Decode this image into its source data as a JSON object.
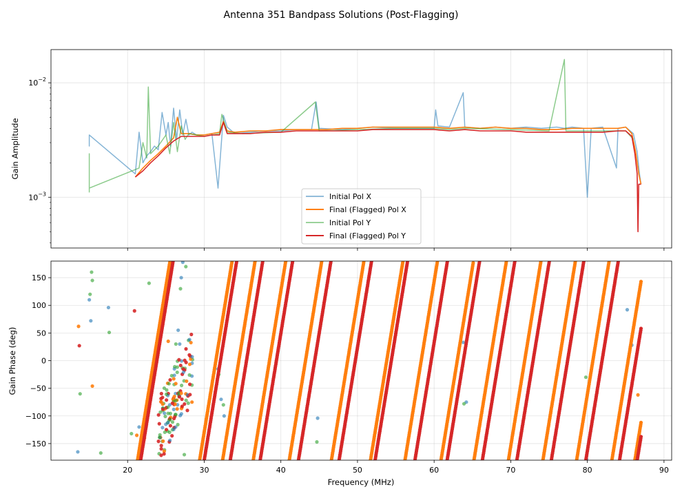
{
  "chart_data": {
    "title": "Antenna 351 Bandpass Solutions (Post-Flagging)",
    "colors": {
      "initial_x": "#1f77b4",
      "final_x": "#ff7f0e",
      "initial_y": "#2ca02c",
      "final_y": "#d62728"
    },
    "x_axis": {
      "label": "Frequency (MHz)",
      "range": [
        10,
        91
      ],
      "ticks": [
        20,
        30,
        40,
        50,
        60,
        70,
        80,
        90
      ],
      "tick_labels": [
        "20",
        "30",
        "40",
        "50",
        "60",
        "70",
        "80",
        "90"
      ]
    },
    "panels": [
      {
        "type": "line",
        "yscale": "log",
        "ylabel": "Gain Amplitude",
        "ylim": [
          0.00036,
          0.0195
        ],
        "y_ticks": [
          0.001,
          0.01
        ],
        "y_tick_labels": [
          {
            "base": "10",
            "exp": "−3"
          },
          {
            "base": "10",
            "exp": "−2"
          }
        ],
        "legend": {
          "placement": "lower-center",
          "entries": [
            "Initial Pol X",
            "Final (Flagged) Pol X",
            "Initial Pol Y",
            "Final (Flagged) Pol Y"
          ]
        },
        "series": [
          {
            "name": "Initial Pol X",
            "color_key": "initial_x",
            "alpha": 0.55,
            "width": 1.5,
            "x": [
              15,
              15,
              15,
              21,
              21.5,
              22,
              22.5,
              23,
              23.5,
              24,
              24.5,
              25,
              25.3,
              25.6,
              26,
              26.4,
              26.8,
              27.2,
              27.6,
              28,
              28.4,
              29,
              30,
              31,
              31.8,
              32.5,
              33,
              34,
              36,
              38,
              40,
              42,
              44,
              44.6,
              45,
              48,
              50,
              52,
              55,
              58,
              60,
              60.2,
              60.5,
              62,
              63.8,
              64,
              66,
              68,
              70,
              72,
              74,
              76,
              77,
              78,
              79.5,
              80,
              80.5,
              82,
              83.8,
              84,
              85,
              86,
              86.5,
              86.8,
              87
            ],
            "y": [
              0.0035,
              0.0028,
              0.0035,
              0.0016,
              0.0037,
              0.002,
              0.0023,
              0.0025,
              0.0028,
              0.0026,
              0.0055,
              0.0035,
              0.0045,
              0.0028,
              0.006,
              0.0032,
              0.0058,
              0.0035,
              0.0048,
              0.0035,
              0.0037,
              0.0035,
              0.0035,
              0.0036,
              0.0012,
              0.0052,
              0.0041,
              0.0036,
              0.0037,
              0.0038,
              0.0038,
              0.0039,
              0.0039,
              0.0068,
              0.004,
              0.0039,
              0.004,
              0.0041,
              0.004,
              0.004,
              0.004,
              0.0058,
              0.0042,
              0.0041,
              0.0082,
              0.0041,
              0.004,
              0.0041,
              0.004,
              0.0041,
              0.004,
              0.0041,
              0.004,
              0.0041,
              0.004,
              0.001,
              0.004,
              0.0041,
              0.0018,
              0.004,
              0.0041,
              0.0036,
              0.0025,
              0.0016,
              0.0013
            ]
          },
          {
            "name": "Final (Flagged) Pol X",
            "color_key": "final_x",
            "alpha": 1,
            "width": 1.6,
            "x": [
              21,
              22,
              23,
              24,
              25,
              26,
              26.5,
              27,
              28,
              29,
              30,
              31,
              32,
              32.5,
              33,
              34,
              36,
              38,
              40,
              42,
              44,
              46,
              48,
              50,
              52,
              54,
              56,
              58,
              60,
              62,
              64,
              66,
              68,
              70,
              72,
              74,
              76,
              78,
              80,
              82,
              84,
              85,
              85.8,
              86.3,
              86.7,
              87
            ],
            "y": [
              0.0015,
              0.0018,
              0.0021,
              0.0024,
              0.0028,
              0.0033,
              0.005,
              0.0036,
              0.0036,
              0.0035,
              0.0035,
              0.0036,
              0.0037,
              0.0046,
              0.0038,
              0.0037,
              0.0038,
              0.0038,
              0.0039,
              0.0039,
              0.0039,
              0.0039,
              0.004,
              0.004,
              0.0041,
              0.0041,
              0.0041,
              0.0041,
              0.0041,
              0.004,
              0.0041,
              0.004,
              0.0041,
              0.004,
              0.004,
              0.0039,
              0.0039,
              0.004,
              0.004,
              0.004,
              0.004,
              0.0041,
              0.0036,
              0.0025,
              0.0016,
              0.0013
            ]
          },
          {
            "name": "Initial Pol Y",
            "color_key": "initial_y",
            "alpha": 0.55,
            "width": 1.5,
            "x": [
              15,
              15,
              15,
              21.5,
              22,
              22.5,
              22.7,
              23,
              24,
              25,
              25.5,
              26,
              26.5,
              27,
              27.5,
              28,
              29,
              30,
              31,
              32,
              32.3,
              33,
              35,
              40,
              44.5,
              45,
              50,
              55,
              60,
              62,
              64,
              70,
              75,
              77,
              77.2,
              80,
              85,
              86
            ],
            "y": [
              0.0011,
              0.0024,
              0.0012,
              0.0018,
              0.003,
              0.0022,
              0.0092,
              0.0024,
              0.0028,
              0.0035,
              0.0024,
              0.0045,
              0.0025,
              0.0042,
              0.0032,
              0.0036,
              0.0035,
              0.0034,
              0.0035,
              0.0036,
              0.0053,
              0.0037,
              0.0036,
              0.0037,
              0.0068,
              0.0038,
              0.0039,
              0.004,
              0.004,
              0.0039,
              0.004,
              0.0039,
              0.0038,
              0.016,
              0.0038,
              0.0038,
              0.0038,
              0.0032
            ]
          },
          {
            "name": "Final (Flagged) Pol Y",
            "color_key": "final_y",
            "alpha": 1,
            "width": 1.6,
            "x": [
              21,
              22,
              23,
              24,
              25,
              26,
              27,
              28,
              29,
              30,
              31,
              32,
              32.5,
              33,
              34,
              36,
              38,
              40,
              42,
              44,
              46,
              48,
              50,
              52,
              54,
              56,
              58,
              60,
              62,
              64,
              66,
              68,
              70,
              72,
              74,
              76,
              78,
              80,
              82,
              84,
              85,
              85.8,
              86.2,
              86.5,
              86.6,
              86.7,
              87
            ],
            "y": [
              0.0015,
              0.0017,
              0.002,
              0.0023,
              0.0027,
              0.0031,
              0.0034,
              0.0034,
              0.0034,
              0.0034,
              0.0035,
              0.0035,
              0.0045,
              0.0036,
              0.0036,
              0.0036,
              0.0037,
              0.0037,
              0.0038,
              0.0038,
              0.0038,
              0.0038,
              0.0038,
              0.0039,
              0.0039,
              0.0039,
              0.0039,
              0.0039,
              0.0038,
              0.0039,
              0.0038,
              0.0038,
              0.0038,
              0.0037,
              0.0037,
              0.0037,
              0.0037,
              0.0037,
              0.0037,
              0.0038,
              0.0038,
              0.0034,
              0.0024,
              0.0016,
              0.0005,
              0.0013,
              0.0013
            ]
          }
        ]
      },
      {
        "type": "scatter",
        "ylabel": "Gain Phase (deg)",
        "ylim": [
          -180,
          180
        ],
        "y_ticks": [
          -150,
          -100,
          -50,
          0,
          50,
          100,
          150
        ],
        "y_tick_labels": [
          "−150",
          "−100",
          "−50",
          "0",
          "50",
          "100",
          "150"
        ],
        "phase_wraps": [
          {
            "series": "Final (Flagged) Pol X",
            "color_key": "final_x",
            "start_freqs": [
              21.3,
              29.4,
              32.4,
              36.4,
              41.1,
              46.6,
              51.7,
              56.2,
              60.9,
              65.2,
              69.7,
              74.2,
              78.6,
              83.2,
              86.2
            ],
            "slope_deg_per_mhz": 85,
            "f_min": 21.3,
            "f_max": 87
          },
          {
            "series": "Final (Flagged) Pol Y",
            "color_key": "final_y",
            "start_freqs": [
              21.7,
              30.0,
              33.4,
              37.3,
              42.3,
              47.6,
              52.3,
              57.5,
              61.7,
              66.3,
              70.8,
              75.3,
              79.8,
              84.2,
              86.5
            ],
            "slope_deg_per_mhz": 85,
            "f_min": 21.7,
            "f_max": 87
          }
        ],
        "scatter_points": [
          {
            "series": "Initial Pol X",
            "color_key": "initial_x",
            "x": [
              13.5,
              15,
              15.2,
              17.5,
              21.5,
              24.8,
              25.5,
              26.6,
              27,
              27.2,
              26.8,
              31.8,
              32.2,
              32.6,
              44.8,
              63.8,
              64.2,
              79.9,
              85.2,
              85.8
            ],
            "y": [
              -165,
              110,
              72,
              96,
              -120,
              -95,
              -80,
              55,
              150,
              178,
              30,
              -15,
              -70,
              -100,
              -104,
              33,
              -75,
              -178,
              92,
              28
            ]
          },
          {
            "series": "Initial Pol Y",
            "color_key": "initial_y",
            "x": [
              13.8,
              15.1,
              15.3,
              15.4,
              16.5,
              17.6,
              20.5,
              22.8,
              24.6,
              25.4,
              26.3,
              26.9,
              27.4,
              27.6,
              31.9,
              32.5,
              44.7,
              63.9,
              79.8
            ],
            "y": [
              -60,
              120,
              160,
              145,
              -167,
              51,
              -132,
              140,
              -90,
              -108,
              30,
              130,
              -170,
              170,
              -25,
              -80,
              -147,
              -78,
              -30
            ]
          },
          {
            "series": "Final (Flagged) Pol X",
            "color_key": "final_x",
            "x": [
              13.6,
              15.4,
              21.2,
              22.2,
              25.3,
              27.6,
              28.4,
              86.6
            ],
            "y": [
              62,
              -46,
              -135,
              -140,
              35,
              -60,
              -75,
              -62
            ]
          },
          {
            "series": "Final (Flagged) Pol Y",
            "color_key": "final_y",
            "x": [
              13.7,
              20.9,
              26,
              26.9,
              27.8,
              86.5
            ],
            "y": [
              27,
              90,
              -68,
              -55,
              -90,
              -175
            ]
          }
        ],
        "cluster_region": {
          "note": "dense mixed cloud 24–29 MHz, −130 to 60 deg"
        }
      }
    ]
  }
}
